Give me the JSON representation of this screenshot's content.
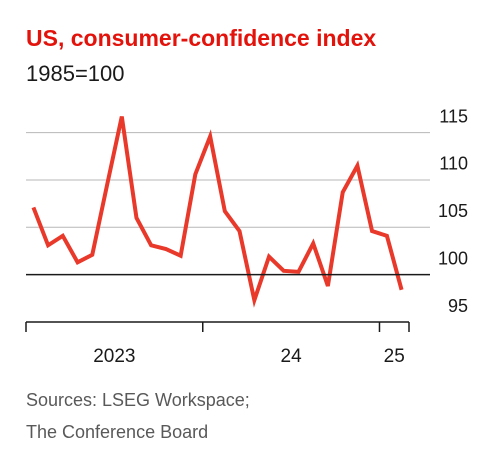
{
  "chart_data": {
    "type": "line",
    "title": "US, consumer-confidence index",
    "subtitle": "1985=100",
    "source": [
      "Sources: LSEG Workspace;",
      "The Conference Board"
    ],
    "x": [
      2023.042,
      2023.125,
      2023.208,
      2023.292,
      2023.375,
      2023.458,
      2023.542,
      2023.625,
      2023.708,
      2023.792,
      2023.875,
      2023.958,
      2024.042,
      2024.125,
      2024.208,
      2024.292,
      2024.375,
      2024.458,
      2024.542,
      2024.625,
      2024.708,
      2024.792,
      2024.875,
      2024.958,
      2025.042,
      2025.125
    ],
    "series": [
      {
        "name": "Consumer-confidence index",
        "color": "#e8392b",
        "values": [
          107.1,
          103.1,
          104.1,
          101.3,
          102.1,
          109.4,
          116.7,
          106.0,
          103.1,
          102.7,
          102.0,
          110.6,
          114.6,
          106.7,
          104.6,
          97.3,
          101.9,
          100.4,
          100.3,
          103.3,
          98.8,
          108.7,
          111.5,
          104.6,
          104.1,
          98.4
        ]
      }
    ],
    "xlim": [
      2023,
      2025.167
    ],
    "xticks": [
      {
        "value": 2023,
        "label": "2023"
      },
      {
        "value": 2024,
        "label": "24"
      },
      {
        "value": 2025,
        "label": "25"
      }
    ],
    "ylim": [
      95,
      117
    ],
    "yticks": [
      95,
      100,
      105,
      110,
      115
    ],
    "baseline": 100,
    "grid": true
  }
}
